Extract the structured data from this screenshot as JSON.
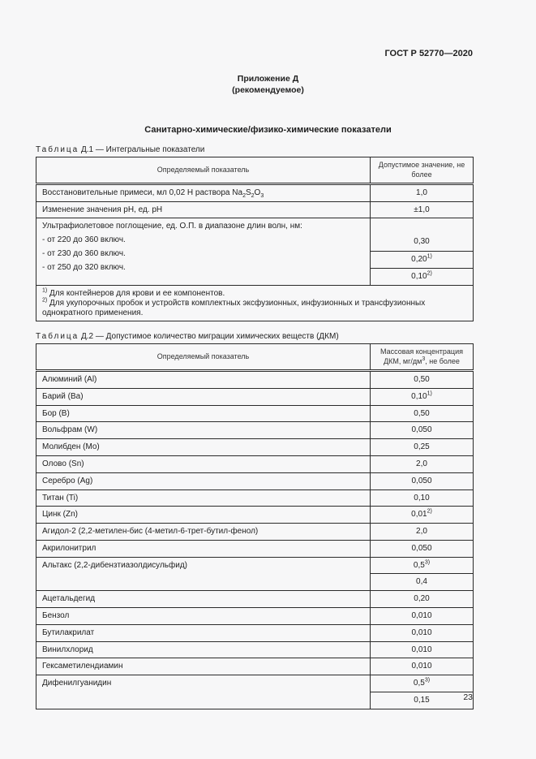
{
  "page": {
    "doc_code": "ГОСТ Р 52770—2020",
    "appendix_title": "Приложение Д",
    "appendix_subtitle": "(рекомендуемое)",
    "section_title": "Санитарно-химические/физико-химические показатели",
    "page_number": "23"
  },
  "table_d1": {
    "caption_word": "Таблица",
    "caption_rest": "Д.1 — Интегральные показатели",
    "col1_header": "Определяемый показатель",
    "col2_header": "Допустимое значение, не более",
    "rows": [
      {
        "name": "Восстановительные примеси, мл 0,02 Н раствора Na_{2}S_{2}O_{3}",
        "value": "1,0"
      },
      {
        "name": "Изменение значения pH, ед. pH",
        "value": "±1,0"
      }
    ],
    "uv": {
      "title": "Ультрафиолетовое поглощение, ед. О.П. в диапазоне длин волн, нм:",
      "items": [
        "- от 220 до 360 включ.",
        "- от 230 до 360 включ.",
        "- от 250 до 320 включ."
      ],
      "values": [
        "0,30",
        "0,20^{1)}",
        "0,10^{2)}"
      ]
    },
    "footnotes": [
      "^{1)} Для контейнеров для крови и ее компонентов.",
      "^{2)} Для укупорочных пробок и устройств комплектных эксфузионных, инфузионных и трансфузионных однократного применения."
    ]
  },
  "table_d2": {
    "caption_word": "Таблица",
    "caption_rest": "Д.2 — Допустимое количество миграции химических веществ (ДКМ)",
    "col1_header": "Определяемый показатель",
    "col2_header": "Массовая концентрация ДКМ, мг/дм^{3}, не более",
    "rows": [
      {
        "name": "Алюминий (Al)",
        "value": "0,50"
      },
      {
        "name": "Барий (Ba)",
        "value": "0,10^{1)}"
      },
      {
        "name": "Бор (B)",
        "value": "0,50"
      },
      {
        "name": "Вольфрам (W)",
        "value": "0,050"
      },
      {
        "name": "Молибден (Mo)",
        "value": "0,25"
      },
      {
        "name": "Олово (Sn)",
        "value": "2,0"
      },
      {
        "name": "Серебро (Ag)",
        "value": "0,050"
      },
      {
        "name": "Титан (Ti)",
        "value": "0,10"
      },
      {
        "name": "Цинк (Zn)",
        "value": "0,01^{2)}"
      },
      {
        "name": "Агидол-2 (2,2-метилен-бис (4-метил-6-трет-бутил-фенол)",
        "value": "2,0"
      },
      {
        "name": "Акрилонитрил",
        "value": "0,050"
      },
      {
        "name": "Альтакс (2,2-дибензтиазолдисульфид)",
        "values": [
          "0,5^{3)}",
          "0,4"
        ]
      },
      {
        "name": "Ацетальдегид",
        "value": "0,20"
      },
      {
        "name": "Бензол",
        "value": "0,010"
      },
      {
        "name": "Бутилакрилат",
        "value": "0,010"
      },
      {
        "name": "Винилхлорид",
        "value": "0,010"
      },
      {
        "name": "Гексаметилендиамин",
        "value": "0,010"
      },
      {
        "name": "Дифенилгуанидин",
        "values": [
          "0,5^{3)}",
          "0,15"
        ]
      }
    ]
  }
}
